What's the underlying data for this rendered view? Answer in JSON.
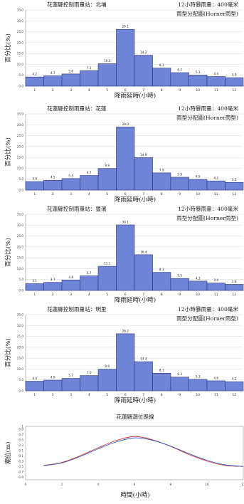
{
  "chart_data": [
    {
      "type": "bar",
      "title": "花蓮縣控制雨量站：北埔",
      "rain_label": "12小時暴雨量：400毫米",
      "subtitle": "雨型分配圖(Horner雨型)",
      "xlabel": "降雨延時(小時)",
      "ylabel": "百分比(%)",
      "categories": [
        "1",
        "2",
        "3",
        "4",
        "5",
        "6",
        "7",
        "8",
        "9",
        "10",
        "11",
        "12"
      ],
      "values": [
        4.2,
        4.7,
        5.6,
        7.1,
        10.3,
        26.1,
        14.2,
        8.3,
        6.2,
        5.1,
        4.4,
        3.9
      ],
      "value_labels": [
        "4.2",
        "4.7",
        "5.6",
        "7.1",
        "10.3",
        "26.1",
        "14.2",
        "8.3",
        "6.2",
        "5.1",
        "4.4",
        "3.9"
      ],
      "ylim": [
        0,
        35
      ],
      "yticks": [
        "0.0",
        "5.0",
        "10.0",
        "15.0",
        "20.0",
        "25.0",
        "30.0",
        "35.0"
      ],
      "grid": true
    },
    {
      "type": "bar",
      "title": "花蓮縣控制雨量站：花蓮",
      "rain_label": "12小時暴雨量：400毫米",
      "subtitle": "雨型分配圖(Horner雨型)",
      "xlabel": "降雨延時(小時)",
      "ylabel": "百分比(%)",
      "categories": [
        "1",
        "2",
        "3",
        "4",
        "5",
        "6",
        "7",
        "8",
        "9",
        "10",
        "11",
        "12"
      ],
      "values": [
        3.9,
        4.5,
        5.3,
        6.7,
        9.9,
        29.0,
        14.9,
        7.9,
        5.9,
        4.9,
        4.2,
        3.5
      ],
      "value_labels": [
        "3.9",
        "4.5",
        "5.3",
        "6.7",
        "9.9",
        "29.0",
        "14.9",
        "7.9",
        "5.9",
        "4.9",
        "4.2",
        "3.5"
      ],
      "ylim": [
        0,
        35
      ],
      "yticks": [
        "0.0",
        "5.0",
        "10.0",
        "15.0",
        "20.0",
        "25.0",
        "30.0",
        "35.0"
      ],
      "grid": true
    },
    {
      "type": "bar",
      "title": "花蓮縣控制雨量站：豐濱",
      "rain_label": "12小時暴雨量：400毫米",
      "subtitle": "雨型分配圖(Horner雨型)",
      "xlabel": "降雨延時(小時)",
      "ylabel": "百分比(%)",
      "categories": [
        "1",
        "2",
        "3",
        "4",
        "5",
        "6",
        "7",
        "8",
        "9",
        "10",
        "11",
        "12"
      ],
      "values": [
        3.1,
        3.7,
        4.8,
        6.7,
        11.1,
        30.1,
        16.4,
        8.3,
        5.5,
        4.3,
        3.4,
        2.8
      ],
      "value_labels": [
        "3.1",
        "3.7",
        "4.8",
        "6.7",
        "11.1",
        "30.1",
        "16.4",
        "8.3",
        "5.5",
        "4.3",
        "3.4",
        "2.8"
      ],
      "ylim": [
        0,
        35
      ],
      "yticks": [
        "0.0",
        "5.0",
        "10.0",
        "15.0",
        "20.0",
        "25.0",
        "30.0",
        "35.0"
      ],
      "grid": true
    },
    {
      "type": "bar",
      "title": "花蓮縣控制雨量站：明里",
      "rain_label": "12小時暴雨量：400毫米",
      "subtitle": "雨型分配圖(Horner雨型)",
      "xlabel": "降雨延時(小時)",
      "ylabel": "百分比(%)",
      "categories": [
        "1",
        "2",
        "3",
        "4",
        "5",
        "6",
        "7",
        "8",
        "9",
        "10",
        "11",
        "12"
      ],
      "values": [
        4.4,
        4.9,
        5.7,
        7.0,
        9.9,
        26.2,
        13.4,
        8.1,
        6.3,
        5.3,
        4.6,
        4.2
      ],
      "value_labels": [
        "4.4",
        "4.9",
        "5.7",
        "7.0",
        "9.9",
        "26.2",
        "13.4",
        "8.1",
        "6.3",
        "5.3",
        "4.6",
        "4.2"
      ],
      "ylim": [
        0,
        35
      ],
      "yticks": [
        "0.0",
        "5.0",
        "10.0",
        "15.0",
        "20.0",
        "25.0",
        "30.0",
        "35.0"
      ],
      "grid": true
    },
    {
      "type": "line",
      "title": "花蓮縣潮位歷線",
      "xlabel": "時間(小時)",
      "ylabel": "潮位(m)",
      "xlim": [
        0,
        12
      ],
      "ylim": [
        -1,
        1
      ],
      "xticks": [
        "0",
        "2",
        "4",
        "6",
        "8",
        "10",
        "12"
      ],
      "yticks": [
        "1",
        "0.9",
        "0.7",
        "0.5",
        "0.3",
        "0.1",
        "-0.1",
        "-0.3",
        "-0.5",
        "-0.7",
        "-0.9"
      ],
      "grid": false,
      "colors": [
        "#c03a3a",
        "#3a57c0"
      ],
      "series": [
        {
          "x": [
            1,
            2,
            3,
            4,
            5,
            6,
            7,
            8,
            9,
            10,
            11,
            12
          ],
          "y": [
            -0.46,
            -0.35,
            -0.1,
            0.2,
            0.47,
            0.62,
            0.5,
            0.25,
            -0.05,
            -0.3,
            -0.46,
            -0.5
          ]
        },
        {
          "x": [
            1,
            2,
            3,
            4,
            5,
            6,
            7,
            8,
            9,
            10,
            11,
            12
          ],
          "y": [
            -0.47,
            -0.37,
            -0.13,
            0.16,
            0.42,
            0.57,
            0.48,
            0.26,
            -0.02,
            -0.27,
            -0.44,
            -0.5
          ]
        }
      ]
    }
  ]
}
